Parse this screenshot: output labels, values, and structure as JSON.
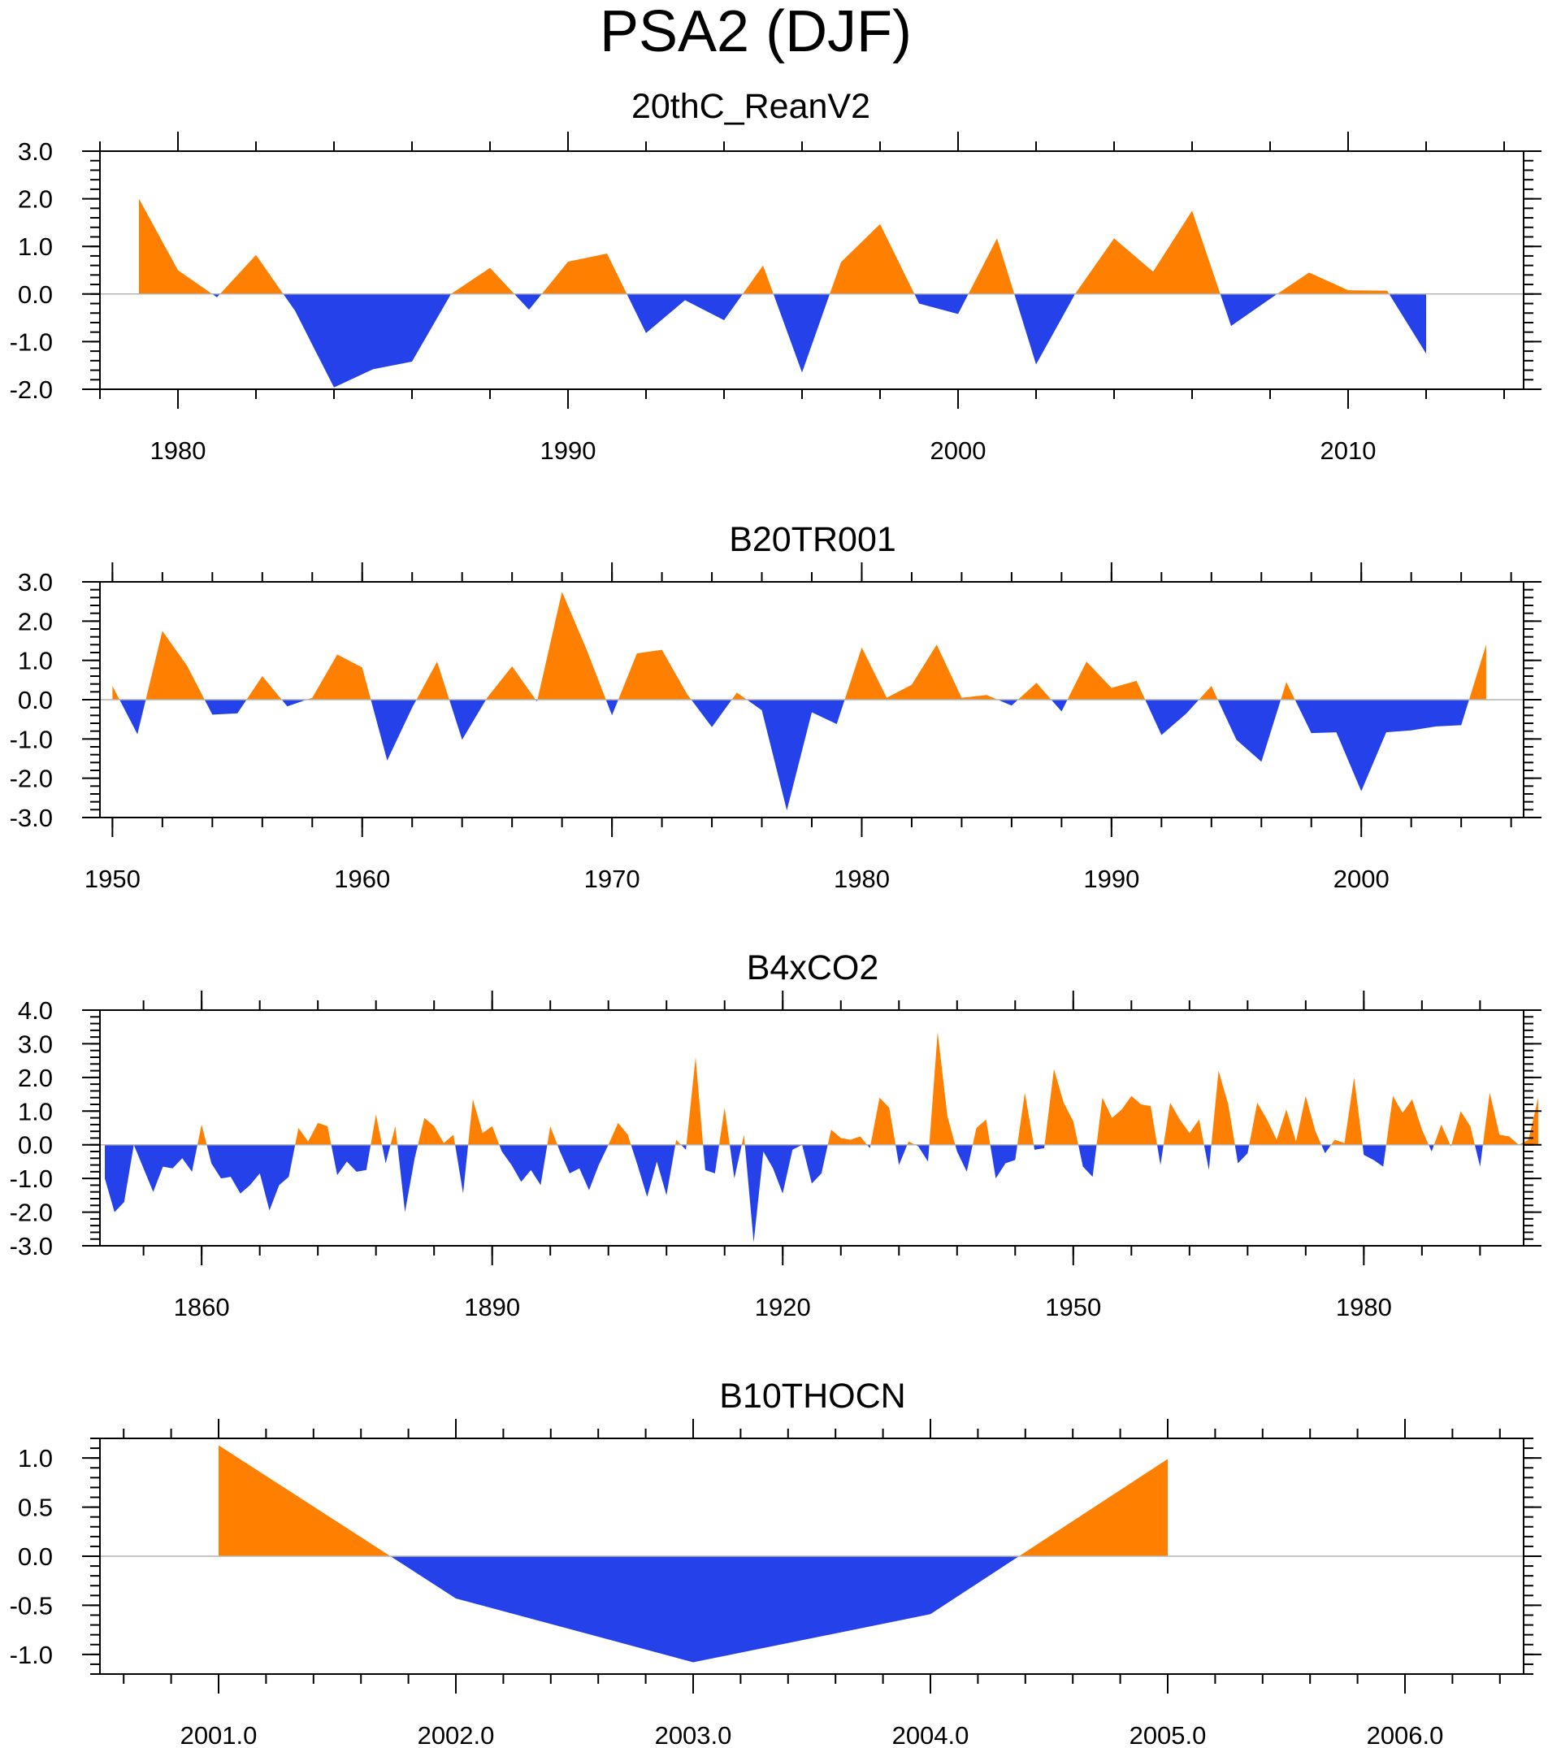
{
  "figure": {
    "title": "PSA2 (DJF)"
  },
  "colors": {
    "positive": "#ff8000",
    "negative": "#2541e9",
    "zero_line": "#b4b4b4",
    "axis": "#000000"
  },
  "chart_data": [
    {
      "type": "area",
      "title": "20thC_ReanV2",
      "xlabel": "",
      "ylabel": "",
      "xlim": [
        1978,
        2014.5
      ],
      "ylim": [
        -2.0,
        3.0
      ],
      "x_ticks": [
        1980,
        1990,
        2000,
        2010
      ],
      "x_tick_labels": [
        "1980",
        "1990",
        "2000",
        "2010"
      ],
      "x_minor_step": 2,
      "y_ticks": [
        3.0,
        2.0,
        1.0,
        0.0,
        -1.0,
        -2.0
      ],
      "y_tick_labels": [
        "3.0",
        "2.0",
        "1.0",
        "0.0",
        "-1.0",
        "-2.0"
      ],
      "y_minor_step": 0.2,
      "x": [
        1979,
        1980,
        1981,
        1982,
        1983,
        1984,
        1985,
        1986,
        1987,
        1988,
        1989,
        1990,
        1991,
        1992,
        1993,
        1994,
        1995,
        1996,
        1997,
        1998,
        1999,
        2000,
        2001,
        2002,
        2003,
        2004,
        2005,
        2006,
        2007,
        2008,
        2009,
        2010,
        2011,
        2012
      ],
      "y": [
        2.0,
        0.5,
        -0.07,
        0.82,
        -0.35,
        -1.96,
        -1.58,
        -1.42,
        0.0,
        0.55,
        -0.33,
        0.68,
        0.85,
        -0.82,
        -0.13,
        -0.55,
        0.6,
        -1.65,
        0.67,
        1.47,
        -0.2,
        -0.42,
        1.17,
        -1.48,
        0.0,
        1.17,
        0.47,
        1.75,
        -0.67,
        -0.1,
        0.45,
        0.08,
        0.07,
        -1.25
      ]
    },
    {
      "type": "area",
      "title": "B20TR001",
      "xlabel": "",
      "ylabel": "",
      "xlim": [
        1949.5,
        2006.5
      ],
      "ylim": [
        -3.0,
        3.0
      ],
      "x_ticks": [
        1950,
        1960,
        1970,
        1980,
        1990,
        2000
      ],
      "x_tick_labels": [
        "1950",
        "1960",
        "1970",
        "1980",
        "1990",
        "2000"
      ],
      "x_minor_step": 2,
      "y_ticks": [
        3.0,
        2.0,
        1.0,
        0.0,
        -1.0,
        -2.0,
        -3.0
      ],
      "y_tick_labels": [
        "3.0",
        "2.0",
        "1.0",
        "0.0",
        "-1.0",
        "-2.0",
        "-3.0"
      ],
      "y_minor_step": 0.2,
      "x": [
        1950,
        1951,
        1952,
        1953,
        1954,
        1955,
        1956,
        1957,
        1958,
        1959,
        1960,
        1961,
        1962,
        1963,
        1964,
        1965,
        1966,
        1967,
        1968,
        1969,
        1970,
        1971,
        1972,
        1973,
        1974,
        1975,
        1976,
        1977,
        1978,
        1979,
        1980,
        1981,
        1982,
        1983,
        1984,
        1985,
        1986,
        1987,
        1988,
        1989,
        1990,
        1991,
        1992,
        1993,
        1994,
        1995,
        1996,
        1997,
        1998,
        1999,
        2000,
        2001,
        2002,
        2003,
        2004,
        2005
      ],
      "y": [
        0.35,
        -0.88,
        1.75,
        0.85,
        -0.38,
        -0.35,
        0.6,
        -0.17,
        0.05,
        1.15,
        0.82,
        -1.55,
        -0.2,
        0.97,
        -1.02,
        0.05,
        0.85,
        -0.05,
        2.75,
        1.25,
        -0.4,
        1.18,
        1.27,
        0.15,
        -0.7,
        0.18,
        -0.27,
        -2.82,
        -0.32,
        -0.62,
        1.33,
        0.05,
        0.38,
        1.4,
        0.05,
        0.12,
        -0.15,
        0.43,
        -0.3,
        0.97,
        0.3,
        0.48,
        -0.9,
        -0.35,
        0.35,
        -1.02,
        -1.58,
        0.45,
        -0.85,
        -0.83,
        -2.33,
        -0.83,
        -0.78,
        -0.68,
        -0.65,
        1.4
      ]
    },
    {
      "type": "area",
      "title": "B4xCO2",
      "xlabel": "",
      "ylabel": "",
      "xlim": [
        1849.5,
        1996.5
      ],
      "ylim": [
        -3.0,
        4.0
      ],
      "x_ticks": [
        1860,
        1890,
        1920,
        1950,
        1980
      ],
      "x_tick_labels": [
        "1860",
        "1890",
        "1920",
        "1950",
        "1980"
      ],
      "x_minor_step": 6,
      "y_ticks": [
        4.0,
        3.0,
        2.0,
        1.0,
        0.0,
        -1.0,
        -2.0,
        -3.0
      ],
      "y_tick_labels": [
        "4.0",
        "3.0",
        "2.0",
        "1.0",
        "0.0",
        "-1.0",
        "-2.0",
        "-3.0"
      ],
      "y_minor_step": 0.2,
      "x_start": 1850,
      "x_step": 1,
      "y": [
        -1.0,
        -2.0,
        -1.7,
        0.0,
        -0.7,
        -1.4,
        -0.65,
        -0.7,
        -0.4,
        -0.8,
        0.6,
        -0.55,
        -1.0,
        -0.95,
        -1.45,
        -1.2,
        -0.85,
        -1.95,
        -1.2,
        -0.95,
        0.5,
        0.1,
        0.65,
        0.55,
        -0.9,
        -0.5,
        -0.8,
        -0.75,
        0.9,
        -0.55,
        0.55,
        -2.0,
        -0.4,
        0.8,
        0.55,
        0.05,
        0.3,
        -1.45,
        1.35,
        0.35,
        0.55,
        -0.2,
        -0.6,
        -1.1,
        -0.75,
        -1.2,
        0.55,
        -0.2,
        -0.85,
        -0.7,
        -1.35,
        -0.6,
        0.0,
        0.65,
        0.3,
        -0.6,
        -1.55,
        -0.5,
        -1.5,
        0.15,
        -0.15,
        2.6,
        -0.75,
        -0.85,
        1.1,
        -1.0,
        0.3,
        -2.9,
        -0.2,
        -0.7,
        -1.45,
        -0.15,
        0.0,
        -1.15,
        -0.85,
        0.45,
        0.2,
        0.15,
        0.25,
        -0.1,
        1.4,
        1.1,
        -0.6,
        0.1,
        -0.05,
        -0.5,
        3.35,
        0.85,
        -0.2,
        -0.8,
        0.5,
        0.75,
        -1.0,
        -0.55,
        -0.45,
        1.55,
        -0.15,
        -0.1,
        2.25,
        1.25,
        0.7,
        -0.65,
        -0.95,
        1.4,
        0.8,
        1.05,
        1.45,
        1.2,
        1.15,
        -0.6,
        1.25,
        0.75,
        0.35,
        0.75,
        -0.75,
        2.2,
        1.2,
        -0.55,
        -0.25,
        1.25,
        0.75,
        0.15,
        1.05,
        0.1,
        1.45,
        0.4,
        -0.25,
        0.15,
        0.05,
        2.0,
        -0.3,
        -0.45,
        -0.65,
        1.45,
        0.95,
        1.35,
        0.45,
        -0.2,
        0.6,
        -0.05,
        1.0,
        0.55,
        -0.65,
        1.55,
        0.3,
        0.25,
        0.0,
        0.15,
        1.4
      ]
    },
    {
      "type": "area",
      "title": "B10THOCN",
      "xlabel": "",
      "ylabel": "",
      "xlim": [
        2000.5,
        2006.5
      ],
      "ylim": [
        -1.2,
        1.2
      ],
      "x_ticks": [
        2001.0,
        2002.0,
        2003.0,
        2004.0,
        2005.0,
        2006.0
      ],
      "x_tick_labels": [
        "2001.0",
        "2002.0",
        "2003.0",
        "2004.0",
        "2005.0",
        "2006.0"
      ],
      "x_minor_step": 0.2,
      "y_ticks": [
        1.0,
        0.5,
        0.0,
        -0.5,
        -1.0
      ],
      "y_tick_labels": [
        "1.0",
        "0.5",
        "0.0",
        "-0.5",
        "-1.0"
      ],
      "y_minor_step": 0.1,
      "x": [
        2001.0,
        2002.0,
        2003.0,
        2004.0,
        2005.0
      ],
      "y": [
        1.13,
        -0.43,
        -1.08,
        -0.59,
        0.99
      ]
    }
  ]
}
